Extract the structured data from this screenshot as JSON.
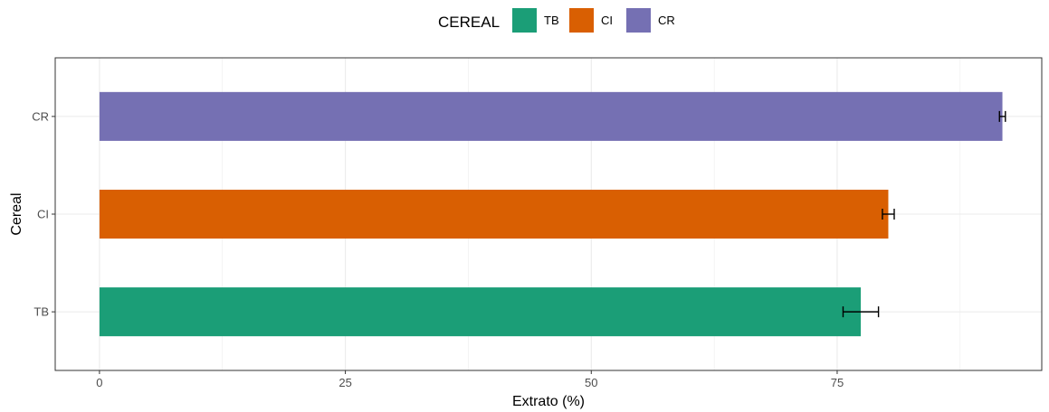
{
  "chart_data": {
    "type": "bar",
    "orientation": "horizontal",
    "categories": [
      "TB",
      "CI",
      "CR"
    ],
    "values": [
      77.4,
      80.2,
      91.8
    ],
    "errors": [
      {
        "low": 75.6,
        "high": 79.2
      },
      {
        "low": 79.6,
        "high": 80.8
      },
      {
        "low": 91.5,
        "high": 92.1
      }
    ],
    "colors": [
      "#1b9e77",
      "#d95f02",
      "#7570b3"
    ],
    "xlabel": "Extrato (%)",
    "ylabel": "Cereal",
    "xlim": [
      -4.5,
      95.8
    ],
    "x_ticks": [
      0,
      25,
      50,
      75
    ],
    "grid": true,
    "legend": {
      "title": "CEREAL",
      "position": "top",
      "entries": [
        "TB",
        "CI",
        "CR"
      ]
    }
  }
}
